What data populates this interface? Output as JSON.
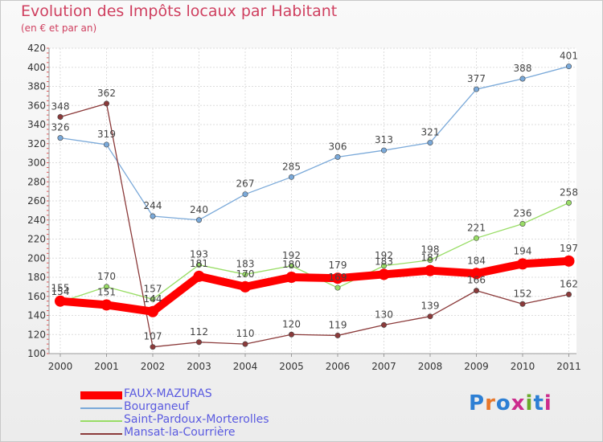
{
  "title": "Evolution des Impôts locaux par Habitant",
  "subtitle": "(en € et par an)",
  "logo": {
    "text": "Proxiti",
    "letter_colors": [
      "#2d7fd4",
      "#e8772a",
      "#2d7fd4",
      "#cc2b8d",
      "#6aaa2a",
      "#2d7fd4",
      "#cc2b8d"
    ]
  },
  "chart_data": {
    "type": "line",
    "title": "Evolution des Impôts locaux par Habitant",
    "subtitle": "(en € et par an)",
    "x": [
      "2000",
      "2001",
      "2002",
      "2003",
      "2004",
      "2005",
      "2006",
      "2007",
      "2008",
      "2009",
      "2010",
      "2011"
    ],
    "ylim": [
      100,
      420
    ],
    "yticks": [
      100,
      120,
      140,
      160,
      180,
      200,
      220,
      240,
      260,
      280,
      300,
      320,
      340,
      360,
      380,
      400,
      420
    ],
    "grid": true,
    "legend_position": "bottom-left",
    "series": [
      {
        "name": "FAUX-MAZURAS",
        "color": "#ff0000",
        "values": [
          155,
          151,
          144,
          181,
          170,
          180,
          179,
          183,
          187,
          184,
          194,
          197
        ],
        "labels": [
          "155",
          "151",
          "144",
          "181",
          "170",
          "180",
          "179",
          "183",
          "187",
          "184",
          "194",
          "197"
        ]
      },
      {
        "name": "Bourganeuf",
        "color": "#7aa9d9",
        "values": [
          326,
          319,
          244,
          240,
          267,
          285,
          306,
          313,
          321,
          377,
          388,
          401
        ],
        "labels": [
          "326",
          "319",
          "244",
          "240",
          "267",
          "285",
          "306",
          "313",
          "321",
          "377",
          "388",
          "401"
        ]
      },
      {
        "name": "Saint-Pardoux-Morterolles",
        "color": "#99dd66",
        "values": [
          154,
          170,
          157,
          193,
          183,
          192,
          169,
          192,
          198,
          221,
          236,
          258
        ],
        "labels": [
          "154",
          "170",
          "157",
          "193",
          "183",
          "192",
          "169",
          "192",
          "198",
          "221",
          "236",
          "258"
        ]
      },
      {
        "name": "Mansat-la-Courrière",
        "color": "#8b3a3a",
        "values": [
          348,
          362,
          107,
          112,
          110,
          120,
          119,
          130,
          139,
          166,
          152,
          162
        ],
        "labels": [
          "348",
          "362",
          "107",
          "112",
          "110",
          "120",
          "119",
          "130",
          "139",
          "166",
          "152",
          "162"
        ]
      }
    ]
  }
}
